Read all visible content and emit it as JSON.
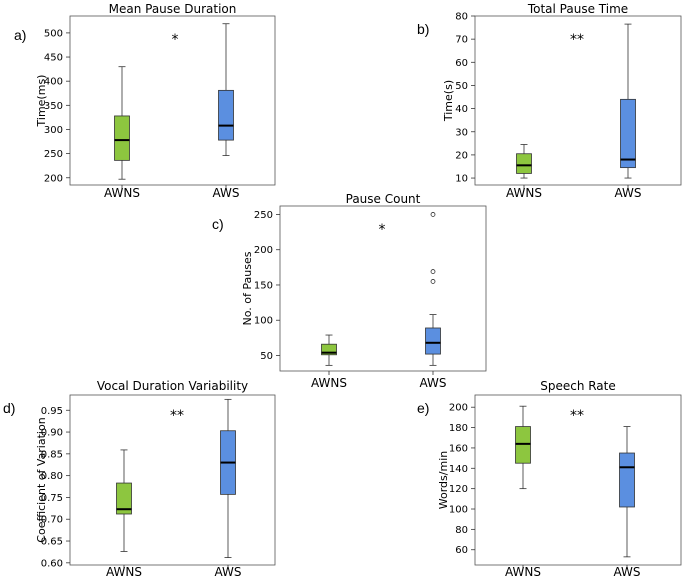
{
  "chart_data": [
    {
      "id": "a",
      "panel_label": "a)",
      "type": "box",
      "title": "Mean Pause Duration",
      "ylabel": "Time(ms)",
      "ylim": [
        185,
        535
      ],
      "yticks": [
        200,
        250,
        300,
        350,
        400,
        450,
        500
      ],
      "significance": "*",
      "groups": [
        {
          "name": "AWNS",
          "color": "#8dc63f",
          "whisker_low": 197,
          "q1": 236,
          "median": 278,
          "q3": 328,
          "whisker_high": 430,
          "outliers": []
        },
        {
          "name": "AWS",
          "color": "#5b8fe0",
          "whisker_low": 246,
          "q1": 278,
          "median": 308,
          "q3": 381,
          "whisker_high": 519,
          "outliers": []
        }
      ]
    },
    {
      "id": "b",
      "panel_label": "b)",
      "type": "box",
      "title": "Total Pause Time",
      "ylabel": "Time(s)",
      "ylim": [
        7,
        80
      ],
      "yticks": [
        10,
        20,
        30,
        40,
        50,
        60,
        70,
        80
      ],
      "significance": "**",
      "groups": [
        {
          "name": "AWNS",
          "color": "#8dc63f",
          "whisker_low": 10,
          "q1": 12,
          "median": 15.5,
          "q3": 20.5,
          "whisker_high": 24.5,
          "outliers": []
        },
        {
          "name": "AWS",
          "color": "#5b8fe0",
          "whisker_low": 10,
          "q1": 14.5,
          "median": 18,
          "q3": 44,
          "whisker_high": 76.5,
          "outliers": []
        }
      ]
    },
    {
      "id": "c",
      "panel_label": "c)",
      "type": "box",
      "title": "Pause Count",
      "ylabel": "No. of Pauses",
      "ylim": [
        28,
        262
      ],
      "yticks": [
        50,
        100,
        150,
        200,
        250
      ],
      "significance": "*",
      "groups": [
        {
          "name": "AWNS",
          "color": "#8dc63f",
          "whisker_low": 36,
          "q1": 51,
          "median": 54,
          "q3": 66,
          "whisker_high": 79,
          "outliers": []
        },
        {
          "name": "AWS",
          "color": "#5b8fe0",
          "whisker_low": 36,
          "q1": 52,
          "median": 68,
          "q3": 89,
          "whisker_high": 108,
          "outliers": [
            155,
            169,
            250
          ]
        }
      ]
    },
    {
      "id": "d",
      "panel_label": "d)",
      "type": "box",
      "title": "Vocal Duration Variability",
      "ylabel": "Coefficient of Variation",
      "ylim": [
        0.595,
        0.985
      ],
      "yticks": [
        0.6,
        0.65,
        0.7,
        0.75,
        0.8,
        0.85,
        0.9,
        0.95
      ],
      "significance": "**",
      "groups": [
        {
          "name": "AWNS",
          "color": "#8dc63f",
          "whisker_low": 0.626,
          "q1": 0.712,
          "median": 0.723,
          "q3": 0.783,
          "whisker_high": 0.859,
          "outliers": []
        },
        {
          "name": "AWS",
          "color": "#5b8fe0",
          "whisker_low": 0.612,
          "q1": 0.757,
          "median": 0.83,
          "q3": 0.903,
          "whisker_high": 0.975,
          "outliers": []
        }
      ]
    },
    {
      "id": "e",
      "panel_label": "e)",
      "type": "box",
      "title": "Speech Rate",
      "ylabel": "Words/min",
      "ylim": [
        45,
        212
      ],
      "yticks": [
        60,
        80,
        100,
        120,
        140,
        160,
        180,
        200
      ],
      "significance": "**",
      "groups": [
        {
          "name": "AWNS",
          "color": "#8dc63f",
          "whisker_low": 120,
          "q1": 145,
          "median": 164,
          "q3": 181,
          "whisker_high": 201,
          "outliers": []
        },
        {
          "name": "AWS",
          "color": "#5b8fe0",
          "whisker_low": 53,
          "q1": 102,
          "median": 141,
          "q3": 155,
          "whisker_high": 181,
          "outliers": []
        }
      ]
    }
  ]
}
